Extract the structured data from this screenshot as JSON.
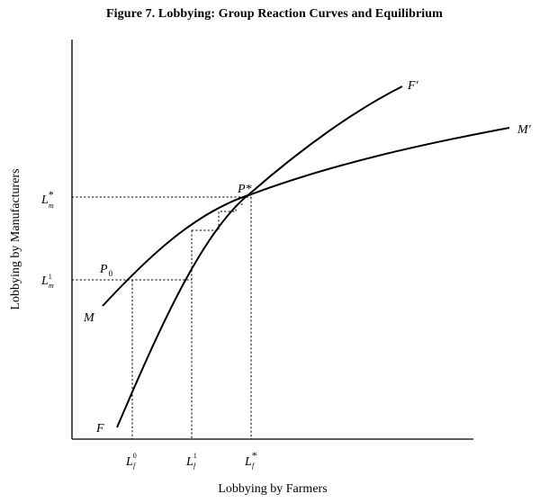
{
  "title": "Figure 7. Lobbying: Group Reaction Curves and Equilibrium",
  "axes": {
    "x_label": "Lobbying by Farmers",
    "y_label": "Lobbying by Manufacturers"
  },
  "curves": [
    {
      "id": "F",
      "start_label": "F",
      "end_label": "F′"
    },
    {
      "id": "M",
      "start_label": "M",
      "end_label": "M′"
    }
  ],
  "points": {
    "initial": {
      "base": "P",
      "sub": "0"
    },
    "equilibrium": {
      "base": "P*"
    }
  },
  "y_ticks": [
    {
      "base": "L",
      "sup": "*",
      "sub": "m"
    },
    {
      "base": "L",
      "sup": "1",
      "sub": "m"
    }
  ],
  "x_ticks": [
    {
      "base": "L",
      "sup": "0",
      "sub": "f"
    },
    {
      "base": "L",
      "sup": "1",
      "sub": "f"
    },
    {
      "base": "L",
      "sup": "*",
      "sub": "f"
    }
  ]
}
